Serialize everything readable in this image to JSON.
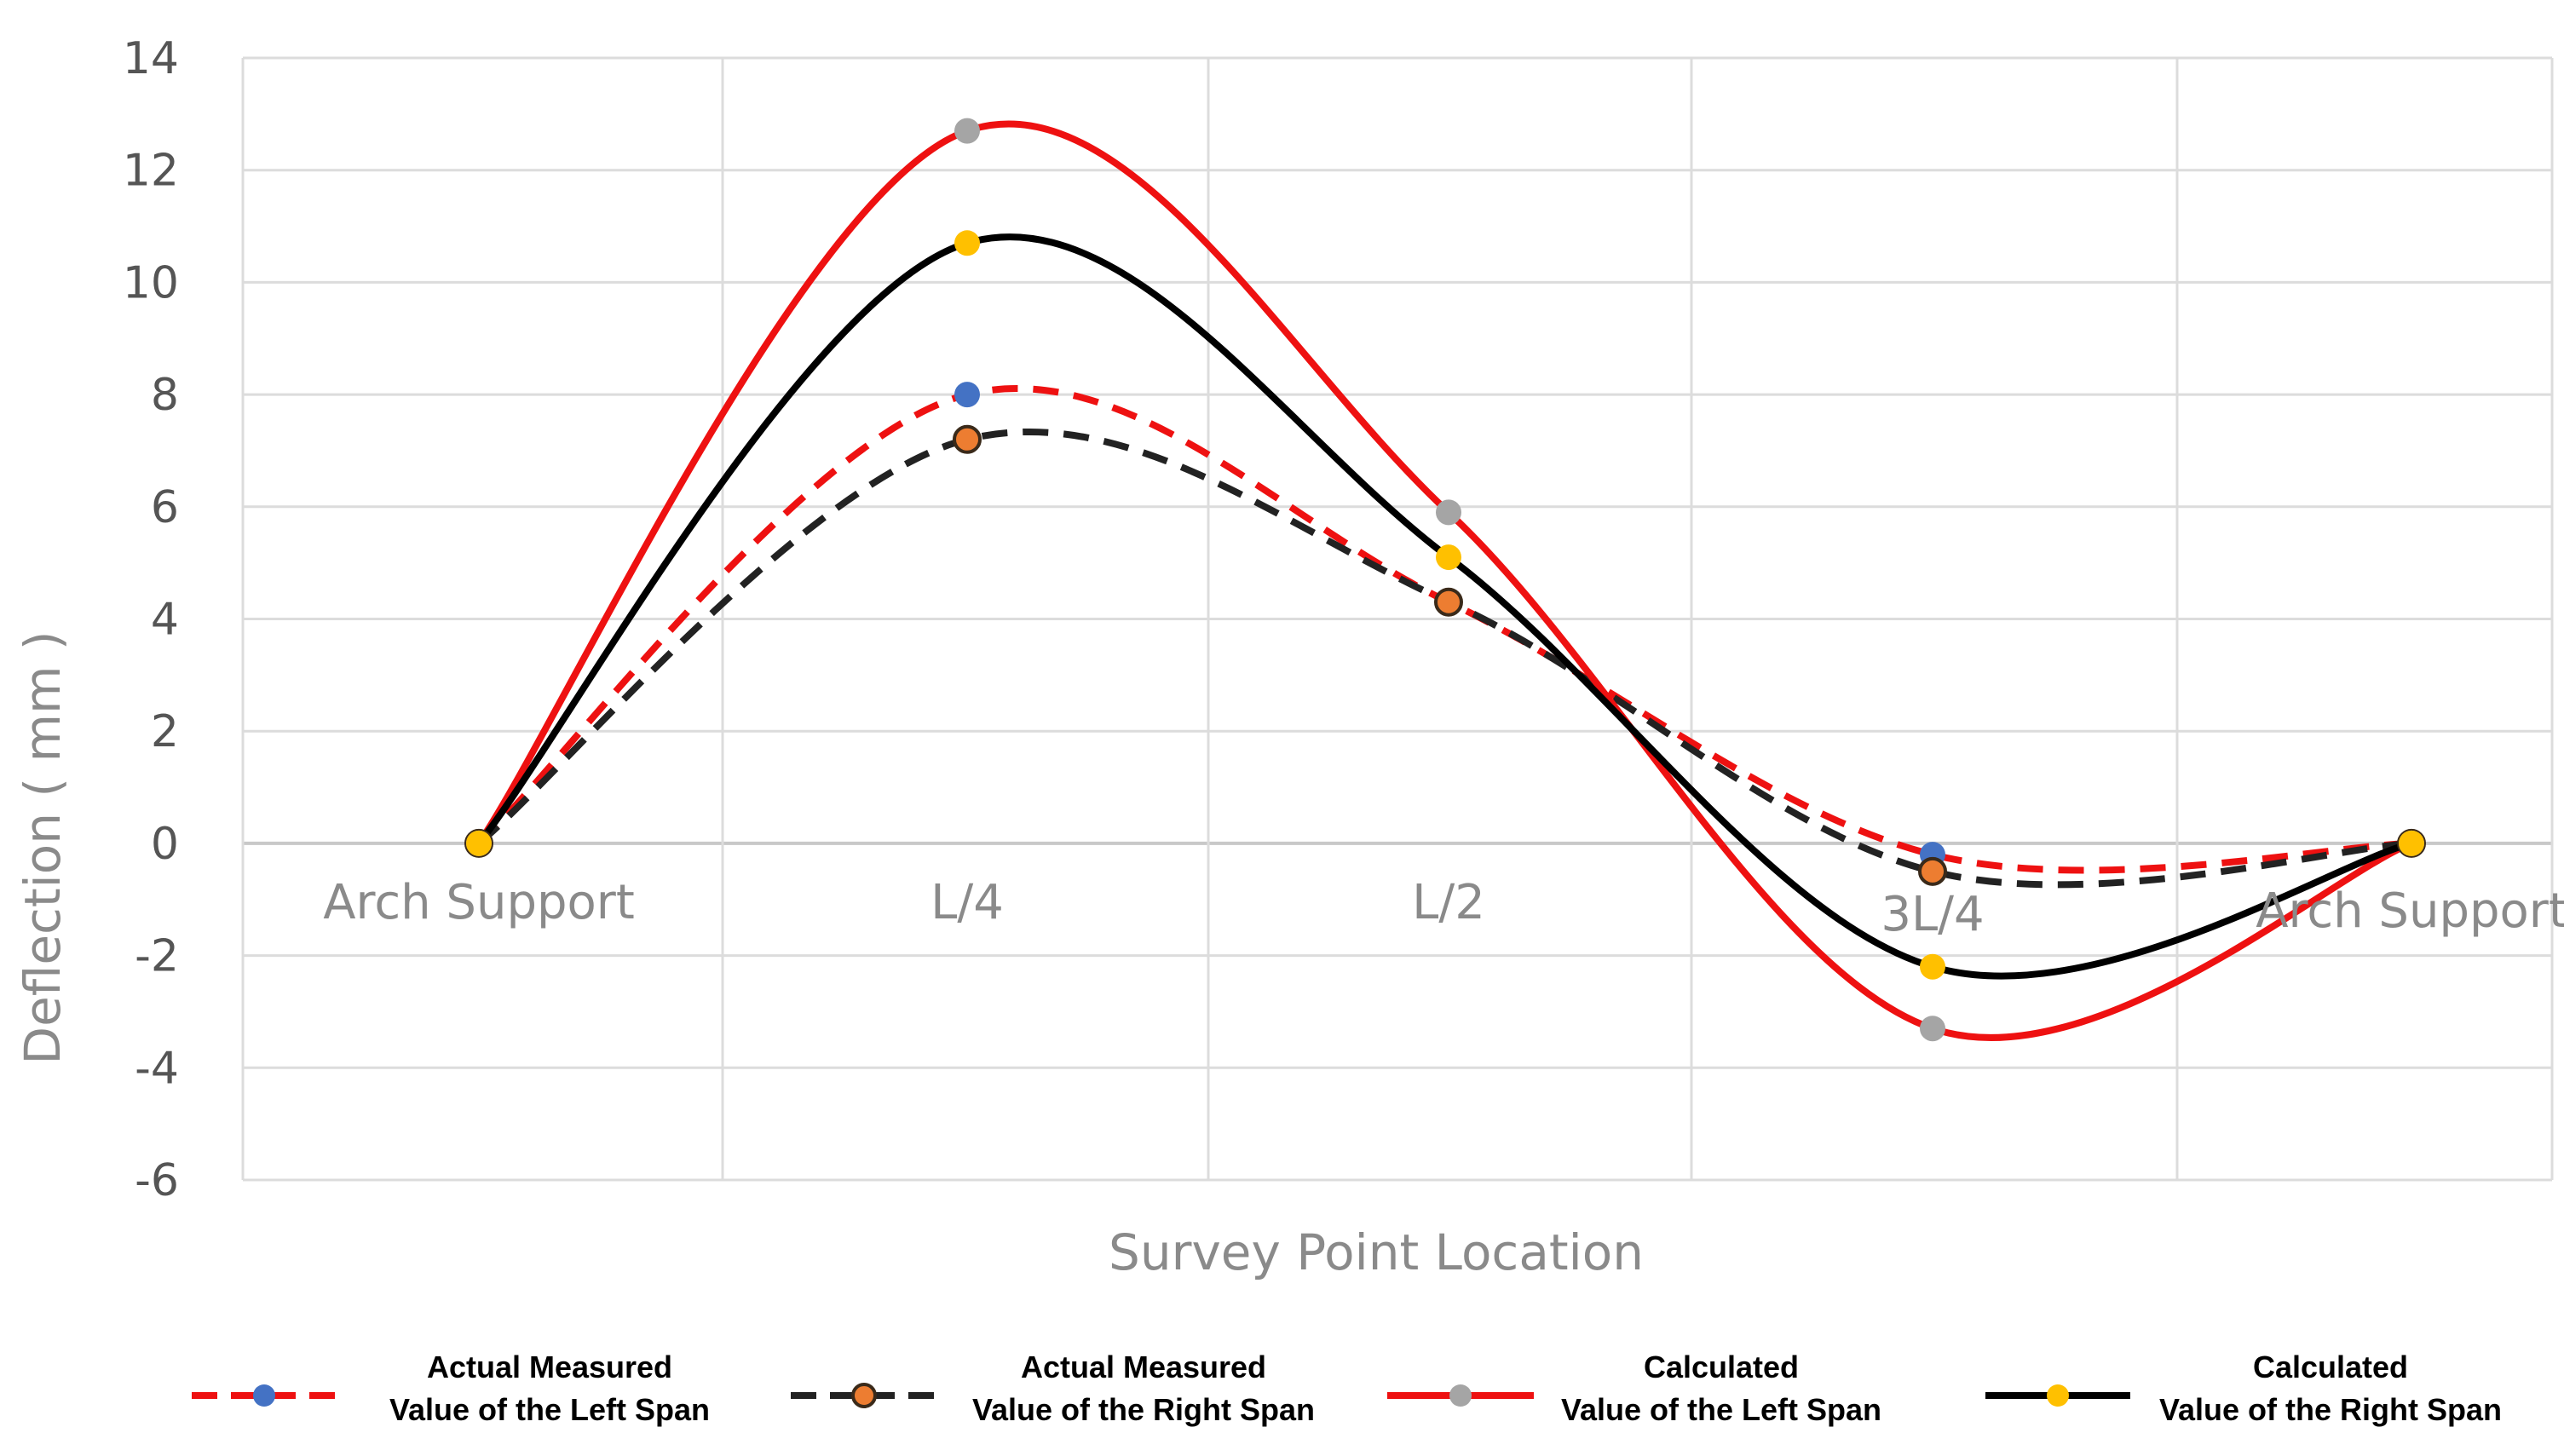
{
  "chart_data": {
    "type": "line",
    "title": "",
    "xlabel": "Survey Point Location",
    "ylabel": "Deflection ( mm )",
    "categories": [
      "Arch Support",
      "L/4",
      "L/2",
      "3L/4",
      "Arch Support"
    ],
    "ylim": [
      -6,
      14
    ],
    "yticks": [
      14,
      12,
      10,
      8,
      6,
      4,
      2,
      0,
      -2,
      -4,
      -6
    ],
    "grid": true,
    "legend_position": "bottom",
    "series": [
      {
        "name": "Actual Measured Value of the Left Span",
        "legend_lines": [
          "Actual Measured",
          "Value of the Left Span"
        ],
        "values": [
          0,
          8.0,
          4.3,
          -0.2,
          0
        ],
        "line_color": "#ee1111",
        "marker_color": "#4472c4",
        "dashed": true
      },
      {
        "name": "Actual Measured Value of the Right Span",
        "legend_lines": [
          "Actual Measured",
          "Value of the Right Span"
        ],
        "values": [
          0,
          7.2,
          4.3,
          -0.5,
          0
        ],
        "line_color": "#222222",
        "marker_color": "#ed7d31",
        "dashed": true
      },
      {
        "name": "Calculated Value of the Left Span",
        "legend_lines": [
          "Calculated",
          "Value of the Left Span"
        ],
        "values": [
          0,
          12.7,
          5.9,
          -3.3,
          0
        ],
        "line_color": "#ee1111",
        "marker_color": "#a5a5a5",
        "dashed": false
      },
      {
        "name": "Calculated Value of the Right Span",
        "legend_lines": [
          "Calculated",
          "Value of the Right Span"
        ],
        "values": [
          0,
          10.7,
          5.1,
          -2.2,
          0
        ],
        "line_color": "#000000",
        "marker_color": "#ffc000",
        "dashed": false
      }
    ]
  }
}
